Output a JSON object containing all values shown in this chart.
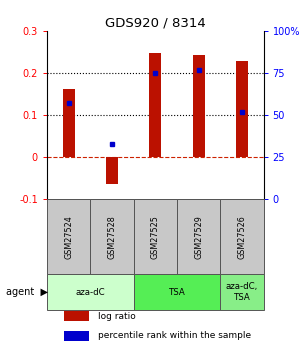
{
  "title": "GDS920 / 8314",
  "samples": [
    "GSM27524",
    "GSM27528",
    "GSM27525",
    "GSM27529",
    "GSM27526"
  ],
  "log_ratios": [
    0.163,
    -0.065,
    0.248,
    0.243,
    0.228
  ],
  "percentile_ranks": [
    0.57,
    0.33,
    0.75,
    0.77,
    0.52
  ],
  "ylim_left": [
    -0.1,
    0.3
  ],
  "ylim_right": [
    0.0,
    1.0
  ],
  "yticks_left": [
    -0.1,
    0.0,
    0.1,
    0.2,
    0.3
  ],
  "yticks_right": [
    0.0,
    0.25,
    0.5,
    0.75,
    1.0
  ],
  "ytick_labels_left": [
    "-0.1",
    "0",
    "0.1",
    "0.2",
    "0.3"
  ],
  "ytick_labels_right": [
    "0",
    "25",
    "50",
    "75",
    "100%"
  ],
  "bar_color": "#bb1100",
  "dot_color": "#0000cc",
  "hline_dotted": [
    0.1,
    0.2
  ],
  "hline_dashed_color": "#cc2200",
  "agent_groups": [
    {
      "label": "aza-dC",
      "span": [
        0,
        2
      ],
      "color": "#ccffcc"
    },
    {
      "label": "TSA",
      "span": [
        2,
        4
      ],
      "color": "#55ee55"
    },
    {
      "label": "aza-dC,\nTSA",
      "span": [
        4,
        5
      ],
      "color": "#88ee88"
    }
  ],
  "legend_items": [
    {
      "color": "#bb1100",
      "label": "log ratio"
    },
    {
      "color": "#0000cc",
      "label": "percentile rank within the sample"
    }
  ],
  "bar_width": 0.28,
  "sample_bg_color": "#c8c8c8",
  "sample_border_color": "#555555"
}
